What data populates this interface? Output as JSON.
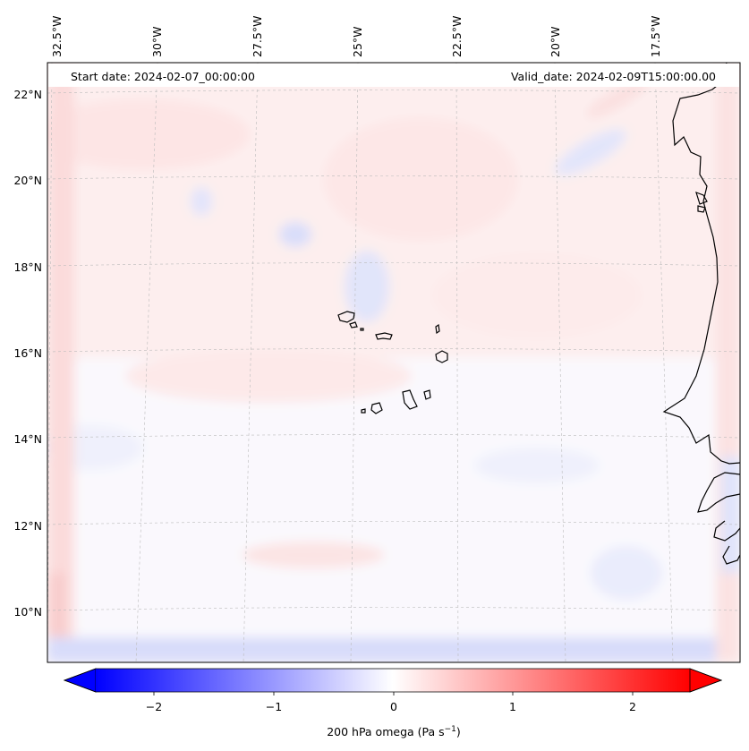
{
  "header": {
    "start_date": "Start date: 2024-02-07_00:00:00",
    "valid_date": "Valid_date: 2024-02-09T15:00:00.00"
  },
  "map": {
    "lon_labels": [
      "32.5°W",
      "30°W",
      "27.5°W",
      "25°W",
      "22.5°W",
      "20°W",
      "17.5°W"
    ],
    "lat_labels": [
      "22°N",
      "20°N",
      "18°N",
      "16°N",
      "14°N",
      "12°N",
      "10°N"
    ],
    "colors": {
      "coast": "#000000",
      "grid": "#bbbbbb",
      "neg": "#0000ff",
      "pos": "#ff0000"
    }
  },
  "colorbar": {
    "ticks": [
      "−2",
      "−1",
      "0",
      "1",
      "2"
    ],
    "label": "200 hPa omega (Pa s",
    "label_sup": "−1",
    "label_end": ")",
    "vmin": -2.7,
    "vmax": 2.7
  }
}
